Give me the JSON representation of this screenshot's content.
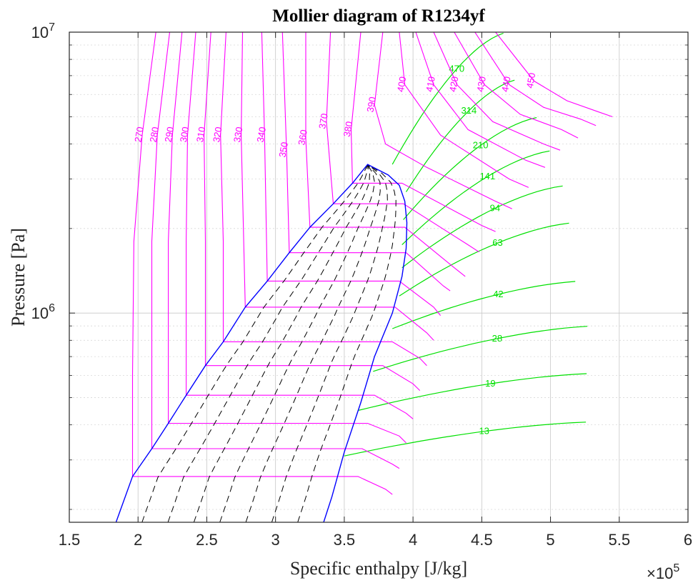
{
  "chart_data": {
    "type": "line",
    "title": "Mollier diagram of R1234yf",
    "xlabel": "Specific enthalpy [J/kg]",
    "ylabel": "Pressure [Pa]",
    "x_exponent_label": "×10",
    "x_exponent_power": "5",
    "y_scale": "log",
    "xlim": [
      150000,
      600000
    ],
    "ylim": [
      180000,
      10000000
    ],
    "x_ticks": [
      150000,
      200000,
      250000,
      300000,
      350000,
      400000,
      450000,
      500000,
      550000,
      600000
    ],
    "x_tick_labels": [
      "1.5",
      "2",
      "2.5",
      "3",
      "3.5",
      "4",
      "4.5",
      "5",
      "5.5",
      "6"
    ],
    "y_tick_labels": [
      {
        "value": 1000000,
        "base": "10",
        "exp": "6"
      },
      {
        "value": 10000000,
        "base": "10",
        "exp": "7"
      }
    ],
    "grid": true,
    "colors": {
      "saturation_dome": "#0000ff",
      "isotherm": "#ff00ff",
      "isochore": "#00e000",
      "quality": "#000000",
      "axes": "#262626",
      "grid": "#c8c8c8"
    },
    "saturation_curve": {
      "liquid_line": [
        [
          184000,
          180000
        ],
        [
          196000,
          262000
        ],
        [
          210000,
          329000
        ],
        [
          222000,
          405000
        ],
        [
          235000,
          510000
        ],
        [
          249000,
          650000
        ],
        [
          262000,
          790000
        ],
        [
          278000,
          1050000
        ],
        [
          294000,
          1300000
        ],
        [
          310000,
          1640000
        ],
        [
          325000,
          2020000
        ],
        [
          342000,
          2450000
        ],
        [
          356000,
          2900000
        ],
        [
          367000,
          3382000
        ]
      ],
      "vapor_line": [
        [
          367000,
          3382000
        ],
        [
          382000,
          3100000
        ],
        [
          390000,
          2850000
        ],
        [
          394000,
          2500000
        ],
        [
          395500,
          2100000
        ],
        [
          395000,
          1700000
        ],
        [
          392000,
          1350000
        ],
        [
          385000,
          1000000
        ],
        [
          372000,
          700000
        ],
        [
          362000,
          480000
        ],
        [
          350000,
          320000
        ],
        [
          341000,
          222000
        ],
        [
          335000,
          180000
        ]
      ]
    },
    "isotherm_series": [
      {
        "name": "270",
        "points": [
          [
            213000,
            10000000
          ],
          [
            203000,
            4300000
          ],
          [
            197000,
            1800000
          ],
          [
            196000,
            600000
          ],
          [
            196000,
            262000
          ],
          [
            360000,
            262000
          ],
          [
            380000,
            236000
          ],
          [
            385000,
            226000
          ]
        ]
      },
      {
        "name": "280",
        "points": [
          [
            223000,
            10000000
          ],
          [
            214000,
            4300000
          ],
          [
            210000,
            1800000
          ],
          [
            210000,
            600000
          ],
          [
            210000,
            329000
          ],
          [
            363000,
            329000
          ],
          [
            385000,
            290000
          ],
          [
            390000,
            280000
          ]
        ]
      },
      {
        "name": "290",
        "points": [
          [
            232000,
            10000000
          ],
          [
            225000,
            4300000
          ],
          [
            222000,
            1800000
          ],
          [
            222000,
            405000
          ],
          [
            367000,
            405000
          ],
          [
            390000,
            365000
          ],
          [
            395000,
            345000
          ]
        ]
      },
      {
        "name": "300",
        "points": [
          [
            242000,
            10000000
          ],
          [
            236000,
            4300000
          ],
          [
            235000,
            1800000
          ],
          [
            235000,
            510000
          ],
          [
            372000,
            510000
          ],
          [
            395000,
            440000
          ],
          [
            400000,
            420000
          ]
        ]
      },
      {
        "name": "310",
        "points": [
          [
            253000,
            10000000
          ],
          [
            248000,
            4300000
          ],
          [
            249000,
            1800000
          ],
          [
            249000,
            650000
          ],
          [
            378000,
            650000
          ],
          [
            400000,
            560000
          ],
          [
            405000,
            530000
          ]
        ]
      },
      {
        "name": "320",
        "points": [
          [
            264000,
            10000000
          ],
          [
            260000,
            4300000
          ],
          [
            262000,
            1800000
          ],
          [
            262000,
            790000
          ],
          [
            385000,
            790000
          ],
          [
            405000,
            690000
          ],
          [
            410000,
            650000
          ]
        ]
      },
      {
        "name": "330",
        "points": [
          [
            276000,
            10000000
          ],
          [
            275000,
            4300000
          ],
          [
            278000,
            1050000
          ],
          [
            387000,
            1050000
          ],
          [
            410000,
            850000
          ],
          [
            415000,
            800000
          ]
        ]
      },
      {
        "name": "340",
        "points": [
          [
            290000,
            10000000
          ],
          [
            292000,
            4300000
          ],
          [
            294000,
            1300000
          ],
          [
            390000,
            1300000
          ],
          [
            415000,
            1050000
          ],
          [
            420000,
            980000
          ]
        ]
      },
      {
        "name": "350",
        "points": [
          [
            305000,
            10000000
          ],
          [
            308000,
            3800000
          ],
          [
            310000,
            1640000
          ],
          [
            395000,
            1640000
          ],
          [
            422000,
            1250000
          ],
          [
            427000,
            1200000
          ]
        ]
      },
      {
        "name": "360",
        "points": [
          [
            322000,
            10000000
          ],
          [
            322000,
            4200000
          ],
          [
            325000,
            2020000
          ],
          [
            394000,
            2020000
          ],
          [
            430000,
            1450000
          ],
          [
            438000,
            1350000
          ]
        ]
      },
      {
        "name": "370",
        "points": [
          [
            340000,
            10000000
          ],
          [
            337000,
            4800000
          ],
          [
            342000,
            2450000
          ],
          [
            393000,
            2450000
          ],
          [
            440000,
            1750000
          ],
          [
            448000,
            1650000
          ]
        ]
      },
      {
        "name": "380",
        "points": [
          [
            362000,
            10000000
          ],
          [
            355000,
            4500000
          ],
          [
            356000,
            2900000
          ],
          [
            392000,
            2900000
          ],
          [
            450000,
            2050000
          ],
          [
            460000,
            1950000
          ]
        ]
      },
      {
        "name": "390",
        "points": [
          [
            378000,
            10000000
          ],
          [
            372000,
            5500000
          ],
          [
            380000,
            4000000
          ],
          [
            410000,
            3300000
          ],
          [
            460000,
            2500000
          ],
          [
            472000,
            2350000
          ]
        ]
      },
      {
        "name": "400",
        "points": [
          [
            390000,
            10000000
          ],
          [
            394000,
            6500000
          ],
          [
            420000,
            4300000
          ],
          [
            470000,
            3000000
          ],
          [
            484000,
            2800000
          ]
        ]
      },
      {
        "name": "410",
        "points": [
          [
            402000,
            10000000
          ],
          [
            415000,
            6500000
          ],
          [
            440000,
            4500000
          ],
          [
            482000,
            3500000
          ],
          [
            496000,
            3300000
          ]
        ]
      },
      {
        "name": "420",
        "points": [
          [
            415000,
            10000000
          ],
          [
            432000,
            6500000
          ],
          [
            458000,
            4800000
          ],
          [
            495000,
            4000000
          ],
          [
            507000,
            3800000
          ]
        ]
      },
      {
        "name": "430",
        "points": [
          [
            430000,
            10000000
          ],
          [
            452000,
            6500000
          ],
          [
            478000,
            5100000
          ],
          [
            508000,
            4500000
          ],
          [
            520000,
            4200000
          ]
        ]
      },
      {
        "name": "440",
        "points": [
          [
            445000,
            10000000
          ],
          [
            470000,
            6500000
          ],
          [
            495000,
            5400000
          ],
          [
            522000,
            4900000
          ],
          [
            533000,
            4650000
          ]
        ]
      },
      {
        "name": "450",
        "points": [
          [
            460000,
            10000000
          ],
          [
            488000,
            6700000
          ],
          [
            512000,
            5700000
          ],
          [
            535000,
            5200000
          ],
          [
            545000,
            5000000
          ]
        ]
      }
    ],
    "isochore_labels": [
      "470",
      "314",
      "210",
      "141",
      "94",
      "63",
      "42",
      "28",
      "19",
      "13"
    ],
    "quality_line_count": 8,
    "isotherm_labels": [
      "270",
      "280",
      "290",
      "300",
      "310",
      "320",
      "330",
      "340",
      "350",
      "360",
      "370",
      "380",
      "390",
      "400",
      "410",
      "420",
      "430",
      "440",
      "450"
    ]
  }
}
